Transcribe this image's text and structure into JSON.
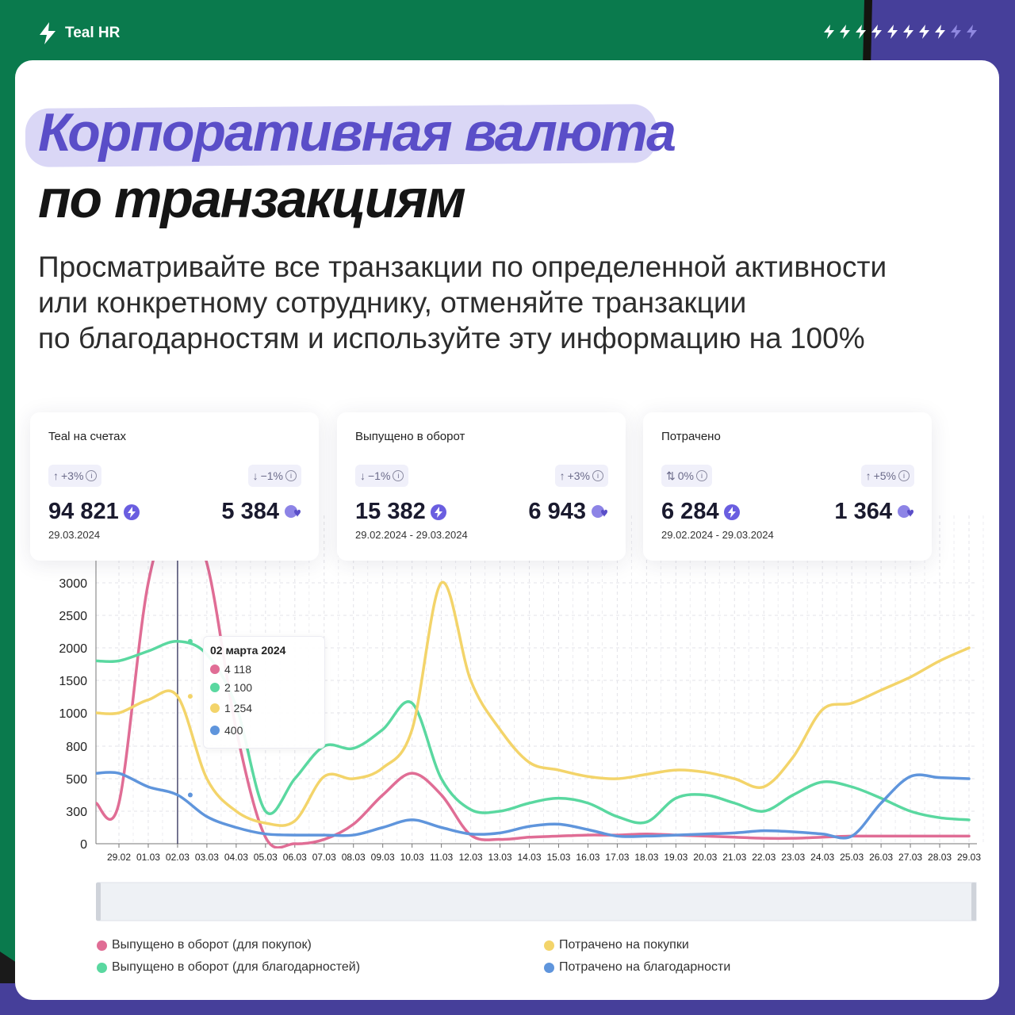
{
  "brand": {
    "name": "Teal HR"
  },
  "colors": {
    "green": "#0a7a4d",
    "purple": "#463f9a",
    "accent": "#5a4ec8",
    "highlight": "#dad7f6"
  },
  "header": {
    "title_line1": "Корпоративная валюта",
    "title_line2": "по транзакциям",
    "subtitle_lines": [
      "Просматривайте все транзакции по определенной активности",
      "или конкретному сотруднику, отменяйте транзакции",
      "по благодарностям и используйте эту информацию на 100%"
    ]
  },
  "kpis": [
    {
      "title": "Teal на счетах",
      "chip_left": "+3%",
      "chip_left_arrow": "↑",
      "chip_right": "−1%",
      "chip_right_arrow": "↓",
      "value_left": "94 821",
      "value_right": "5 384",
      "date": "29.03.2024",
      "icon_left": "teal-coin-icon",
      "icon_right": "heart-coin-icon"
    },
    {
      "title": "Выпущено в оборот",
      "chip_left": "−1%",
      "chip_left_arrow": "↓",
      "chip_right": "+3%",
      "chip_right_arrow": "↑",
      "value_left": "15 382",
      "value_right": "6 943",
      "date": "29.02.2024 - 29.03.2024",
      "icon_left": "teal-coin-icon",
      "icon_right": "heart-coin-icon"
    },
    {
      "title": "Потрачено",
      "chip_left": "0%",
      "chip_left_arrow": "⇅",
      "chip_right": "+5%",
      "chip_right_arrow": "↑",
      "value_left": "6 284",
      "value_right": "1 364",
      "date": "29.02.2024 - 29.03.2024",
      "icon_left": "teal-coin-icon",
      "icon_right": "heart-coin-icon"
    }
  ],
  "tooltip": {
    "title": "02 марта 2024",
    "rows": [
      {
        "value": "4 118",
        "color": "#e06d95"
      },
      {
        "value": "2 100",
        "color": "#5ad8a0"
      },
      {
        "value": "1 254",
        "color": "#f3d46a"
      },
      {
        "value": "400",
        "color": "#5f95dc"
      }
    ]
  },
  "chart_data": {
    "type": "line",
    "x": [
      "29.02",
      "01.03",
      "02.03",
      "03.03",
      "04.03",
      "05.03",
      "06.03",
      "07.03",
      "08.03",
      "09.03",
      "10.03",
      "11.03",
      "12.03",
      "13.03",
      "14.03",
      "15.03",
      "16.03",
      "17.03",
      "18.03",
      "19.03",
      "20.03",
      "21.03",
      "22.03",
      "23.03",
      "24.03",
      "25.03",
      "26.03",
      "27.03",
      "28.03",
      "29.03"
    ],
    "y_ticks": [
      0,
      300,
      500,
      800,
      1000,
      1500,
      2000,
      2500,
      3000
    ],
    "series": [
      {
        "name": "Выпущено в оборот (для покупок)",
        "color": "#e06d95",
        "values": [
          350,
          3000,
          4118,
          3300,
          900,
          60,
          0,
          40,
          180,
          400,
          550,
          400,
          80,
          40,
          60,
          70,
          80,
          80,
          90,
          80,
          70,
          60,
          50,
          50,
          60,
          70,
          70,
          70,
          70,
          70
        ]
      },
      {
        "name": "Выпущено в оборот (для благодарностей)",
        "color": "#5ad8a0",
        "values": [
          1800,
          1950,
          2100,
          1900,
          1100,
          300,
          500,
          800,
          780,
          900,
          1150,
          500,
          310,
          300,
          350,
          380,
          350,
          250,
          200,
          380,
          400,
          350,
          300,
          400,
          480,
          450,
          380,
          300,
          240,
          220
        ]
      },
      {
        "name": "Потрачено на покупки",
        "color": "#f3d46a",
        "values": [
          1000,
          1200,
          1254,
          500,
          300,
          190,
          210,
          520,
          500,
          600,
          900,
          3000,
          1500,
          900,
          650,
          580,
          520,
          500,
          540,
          580,
          560,
          500,
          450,
          700,
          1050,
          1150,
          1350,
          1550,
          1800,
          2000
        ]
      },
      {
        "name": "Потрачено на благодарности",
        "color": "#5f95dc",
        "values": [
          550,
          450,
          400,
          250,
          150,
          90,
          80,
          80,
          80,
          150,
          220,
          150,
          90,
          100,
          160,
          180,
          130,
          70,
          70,
          80,
          90,
          100,
          120,
          110,
          90,
          70,
          350,
          520,
          510,
          500
        ]
      }
    ],
    "highlight_x": "02.03"
  },
  "legend": [
    {
      "label": "Выпущено в оборот (для покупок)",
      "color": "#e06d95"
    },
    {
      "label": "Потрачено на покупки",
      "color": "#f3d46a"
    },
    {
      "label": "Выпущено в оборот (для благодарностей)",
      "color": "#5ad8a0"
    },
    {
      "label": "Потрачено на благодарности",
      "color": "#5f95dc"
    }
  ]
}
